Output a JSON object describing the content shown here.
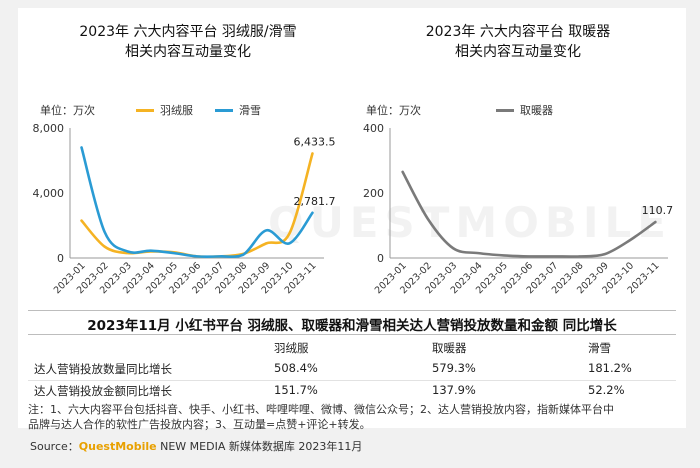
{
  "charts": [
    {
      "title_line1": "2023年 六大内容平台 羽绒服/滑雪",
      "title_line2": "相关内容互动量变化",
      "unit": "单位：万次"
    },
    {
      "title_line1": "2023年 六大内容平台 取暖器",
      "title_line2": "相关内容互动量变化",
      "unit": "单位：万次"
    }
  ],
  "chart_data": [
    {
      "type": "line",
      "title": "2023年 六大内容平台 羽绒服/滑雪 相关内容互动量变化",
      "ylabel": "单位：万次",
      "x": [
        "2023-01",
        "2023-02",
        "2023-03",
        "2023-04",
        "2023-05",
        "2023-06",
        "2023-07",
        "2023-08",
        "2023-09",
        "2023-10",
        "2023-11"
      ],
      "ylim": [
        0,
        8000
      ],
      "yticks": [
        "8,000",
        "4,000",
        "0"
      ],
      "ytick_values": [
        8000,
        4000,
        0
      ],
      "legend": "top",
      "series": [
        {
          "name": "羽绒服",
          "color": "#f5b323",
          "values": [
            2300,
            700,
            300,
            400,
            350,
            100,
            100,
            250,
            900,
            1500,
            6433.5
          ]
        },
        {
          "name": "滑雪",
          "color": "#2a9bd4",
          "values": [
            6800,
            1600,
            400,
            450,
            300,
            100,
            100,
            200,
            1700,
            900,
            2781.7
          ]
        }
      ],
      "annotations": [
        {
          "series": 0,
          "index": 10,
          "label": "6,433.5"
        },
        {
          "series": 1,
          "index": 10,
          "label": "2,781.7"
        }
      ]
    },
    {
      "type": "line",
      "title": "2023年 六大内容平台 取暖器 相关内容互动量变化",
      "ylabel": "单位：万次",
      "x": [
        "2023-01",
        "2023-02",
        "2023-03",
        "2023-04",
        "2023-05",
        "2023-06",
        "2023-07",
        "2023-08",
        "2023-09",
        "2023-10",
        "2023-11"
      ],
      "ylim": [
        0,
        400
      ],
      "yticks": [
        "400",
        "200",
        "0"
      ],
      "ytick_values": [
        400,
        200,
        0
      ],
      "legend": "top",
      "series": [
        {
          "name": "取暖器",
          "color": "#7a7a7a",
          "values": [
            265,
            120,
            30,
            15,
            8,
            5,
            5,
            5,
            12,
            55,
            110.7
          ]
        }
      ],
      "annotations": [
        {
          "series": 0,
          "index": 10,
          "label": "110.7"
        }
      ]
    }
  ],
  "table": {
    "title": "2023年11月 小红书平台 羽绒服、取暖器和滑雪相关达人营销投放数量和金额 同比增长",
    "columns": [
      "羽绒服",
      "取暖器",
      "滑雪"
    ],
    "rows": [
      {
        "label": "达人营销投放数量同比增长",
        "values": [
          "508.4%",
          "579.3%",
          "181.2%"
        ]
      },
      {
        "label": "达人营销投放金额同比增长",
        "values": [
          "151.7%",
          "137.9%",
          "52.2%"
        ]
      }
    ]
  },
  "note_line1": "注：1、六大内容平台包括抖音、快手、小红书、哔哩哔哩、微博、微信公众号；2、达人营销投放内容，指新媒体平台中",
  "note_line2": "品牌与达人合作的软性广告投放内容；3、互动量=点赞+评论+转发。",
  "source": {
    "prefix": "Source：",
    "brand": "QuestMobile",
    "suffix": " NEW MEDIA 新媒体数据库 2023年11月"
  },
  "watermark": "QUESTMOBILE"
}
